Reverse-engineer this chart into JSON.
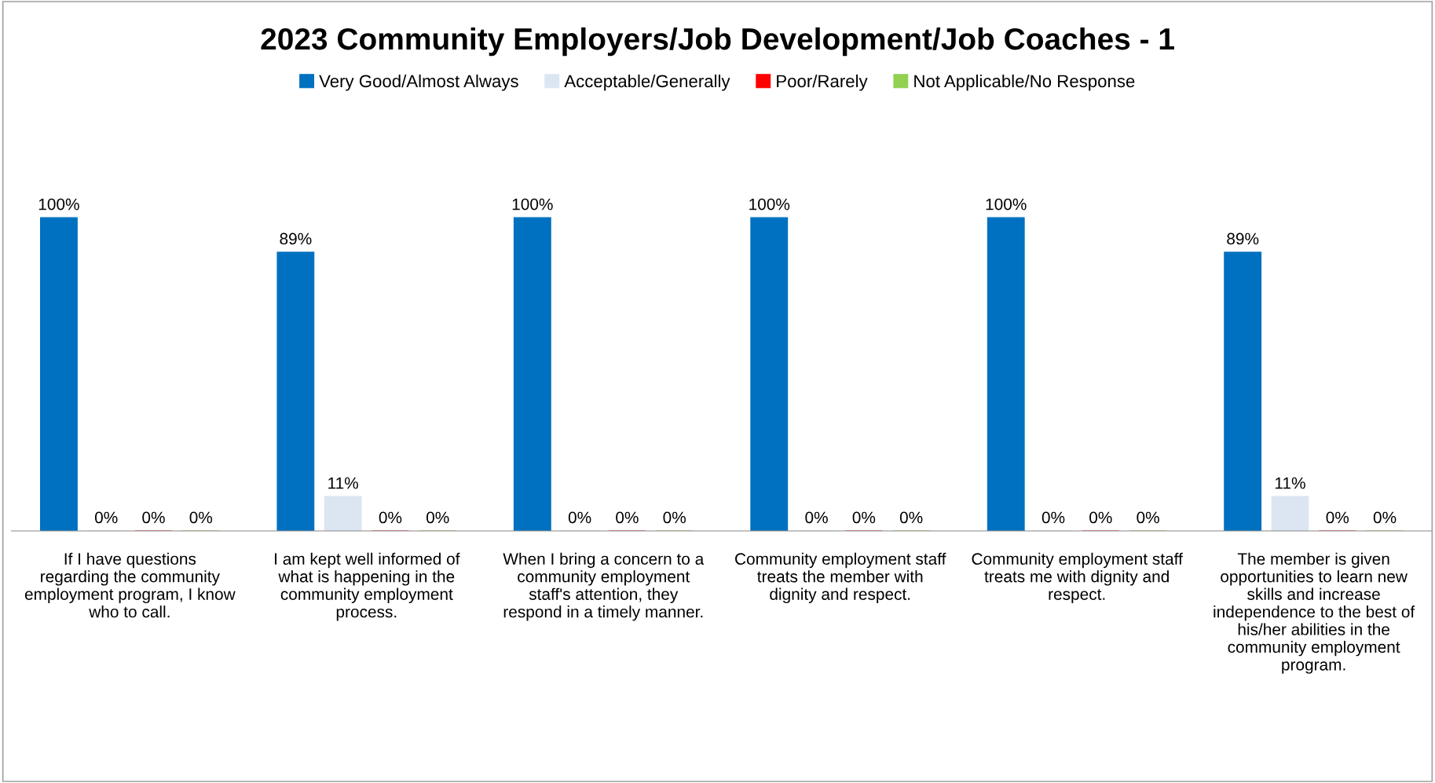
{
  "chart_data": {
    "type": "bar",
    "title": "2023 Community Employers/Job Development/Job Coaches - 1",
    "categories": [
      "If I have questions regarding the community employment program, I know who to call.",
      "I am kept well informed of what is happening in the community employment process.",
      "When I bring a concern to a community employment staff's attention, they respond in a timely manner.",
      "Community employment staff treats the member with dignity and respect.",
      "Community employment staff treats me with dignity and respect.",
      "The member is given opportunities to learn new skills and increase independence to the best of his/her abilities in the community employment program."
    ],
    "series": [
      {
        "name": "Very Good/Almost Always",
        "color": "#0070c0",
        "values": [
          100,
          89,
          100,
          100,
          100,
          89
        ],
        "value_labels": [
          "100%",
          "89%",
          "100%",
          "100%",
          "100%",
          "89%"
        ]
      },
      {
        "name": "Acceptable/Generally",
        "color": "#dce6f2",
        "values": [
          0,
          11,
          0,
          0,
          0,
          11
        ],
        "value_labels": [
          "0%",
          "11%",
          "0%",
          "0%",
          "0%",
          "11%"
        ]
      },
      {
        "name": "Poor/Rarely",
        "color": "#ff0000",
        "values": [
          0,
          0,
          0,
          0,
          0,
          0
        ],
        "value_labels": [
          "0%",
          "0%",
          "0%",
          "0%",
          "0%",
          "0%"
        ]
      },
      {
        "name": "Not Applicable/No Response",
        "color": "#92d050",
        "values": [
          0,
          0,
          0,
          0,
          0,
          0
        ],
        "value_labels": [
          "0%",
          "0%",
          "0%",
          "0%",
          "0%",
          "0%"
        ]
      }
    ],
    "tick_labels": "x",
    "grid": false,
    "legend": "top"
  }
}
